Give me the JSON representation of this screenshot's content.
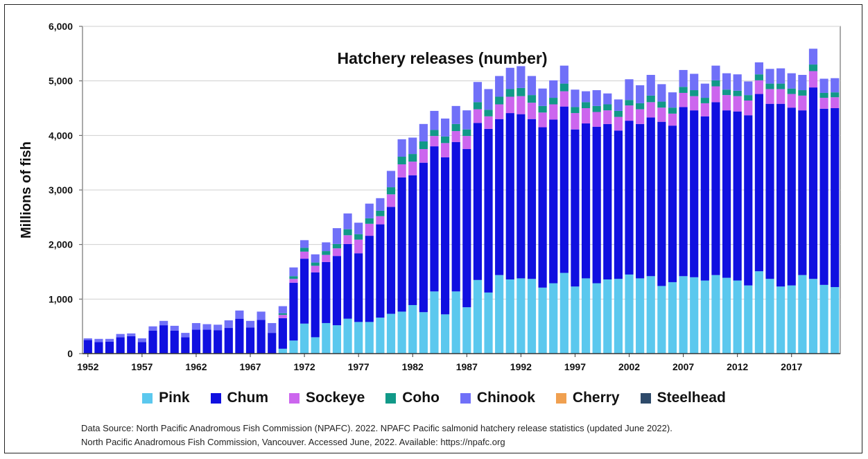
{
  "chart_data": {
    "type": "bar",
    "stacked": true,
    "title": "Hatchery releases (number)",
    "xlabel": "",
    "ylabel": "Millions of fish",
    "ylim": [
      0,
      6000
    ],
    "yticks": [
      0,
      1000,
      2000,
      3000,
      4000,
      5000,
      6000
    ],
    "ytick_labels": [
      "0",
      "1,000",
      "2,000",
      "3,000",
      "4,000",
      "5,000",
      "6,000"
    ],
    "xtick_labels": [
      "1952",
      "1957",
      "1962",
      "1967",
      "1972",
      "1977",
      "1982",
      "1987",
      "1992",
      "1997",
      "2002",
      "2007",
      "2012",
      "2017"
    ],
    "grid": "horizontal",
    "legend_position": "bottom",
    "categories": [
      "1952",
      "1953",
      "1954",
      "1955",
      "1956",
      "1957",
      "1958",
      "1959",
      "1960",
      "1961",
      "1962",
      "1963",
      "1964",
      "1965",
      "1966",
      "1967",
      "1968",
      "1969",
      "1970",
      "1971",
      "1972",
      "1973",
      "1974",
      "1975",
      "1976",
      "1977",
      "1978",
      "1979",
      "1980",
      "1981",
      "1982",
      "1983",
      "1984",
      "1985",
      "1986",
      "1987",
      "1988",
      "1989",
      "1990",
      "1991",
      "1992",
      "1993",
      "1994",
      "1995",
      "1996",
      "1997",
      "1998",
      "1999",
      "2000",
      "2001",
      "2002",
      "2003",
      "2004",
      "2005",
      "2006",
      "2007",
      "2008",
      "2009",
      "2010",
      "2011",
      "2012",
      "2013",
      "2014",
      "2015",
      "2016",
      "2017",
      "2018",
      "2019",
      "2020",
      "2021"
    ],
    "series": [
      {
        "name": "Pink",
        "color": "#5bc8ee",
        "values": [
          0,
          0,
          0,
          0,
          0,
          0,
          0,
          0,
          0,
          0,
          0,
          0,
          0,
          0,
          0,
          0,
          0,
          0,
          90,
          240,
          550,
          300,
          560,
          520,
          640,
          580,
          580,
          660,
          730,
          770,
          890,
          760,
          1140,
          720,
          1140,
          850,
          1350,
          1120,
          1440,
          1360,
          1380,
          1370,
          1210,
          1290,
          1480,
          1230,
          1380,
          1290,
          1360,
          1370,
          1450,
          1380,
          1420,
          1240,
          1310,
          1420,
          1400,
          1340,
          1440,
          1390,
          1340,
          1250,
          1510,
          1370,
          1230,
          1250,
          1440,
          1370,
          1260,
          1220
        ]
      },
      {
        "name": "Chum",
        "color": "#1010e0",
        "values": [
          250,
          210,
          220,
          300,
          320,
          210,
          420,
          520,
          420,
          300,
          440,
          440,
          430,
          470,
          640,
          480,
          620,
          380,
          560,
          1060,
          1190,
          1190,
          1120,
          1270,
          1370,
          1260,
          1580,
          1710,
          1960,
          2460,
          2380,
          2740,
          2660,
          2880,
          2740,
          2900,
          2880,
          3000,
          2860,
          3050,
          3010,
          2930,
          2940,
          3000,
          3050,
          2880,
          2840,
          2870,
          2850,
          2720,
          2820,
          2830,
          2910,
          3010,
          2870,
          3100,
          3060,
          3010,
          3170,
          3070,
          3100,
          3120,
          3250,
          3210,
          3350,
          3260,
          3020,
          3510,
          3230,
          3280
        ]
      },
      {
        "name": "Sockeye",
        "color": "#cc66ee",
        "values": [
          0,
          0,
          0,
          0,
          0,
          0,
          0,
          0,
          0,
          0,
          0,
          0,
          0,
          0,
          0,
          0,
          0,
          0,
          60,
          70,
          130,
          120,
          130,
          140,
          160,
          250,
          220,
          150,
          230,
          240,
          250,
          250,
          190,
          260,
          200,
          240,
          250,
          230,
          270,
          300,
          330,
          300,
          270,
          280,
          280,
          300,
          280,
          270,
          250,
          250,
          280,
          270,
          280,
          260,
          220,
          260,
          260,
          240,
          290,
          280,
          280,
          270,
          250,
          270,
          270,
          250,
          270,
          300,
          200,
          200
        ]
      },
      {
        "name": "Coho",
        "color": "#119988",
        "values": [
          0,
          0,
          0,
          0,
          0,
          0,
          0,
          0,
          0,
          0,
          0,
          0,
          0,
          0,
          0,
          0,
          0,
          0,
          30,
          50,
          70,
          60,
          70,
          80,
          110,
          100,
          100,
          100,
          130,
          140,
          140,
          140,
          110,
          120,
          130,
          120,
          130,
          120,
          140,
          140,
          150,
          140,
          120,
          120,
          140,
          110,
          110,
          110,
          110,
          110,
          100,
          110,
          120,
          110,
          110,
          110,
          110,
          100,
          110,
          100,
          100,
          100,
          110,
          100,
          100,
          100,
          100,
          120,
          90,
          90
        ]
      },
      {
        "name": "Chinook",
        "color": "#7070f8",
        "values": [
          30,
          60,
          50,
          60,
          50,
          70,
          80,
          80,
          90,
          80,
          120,
          100,
          100,
          140,
          150,
          120,
          150,
          180,
          130,
          160,
          140,
          150,
          160,
          290,
          290,
          210,
          270,
          230,
          300,
          320,
          300,
          320,
          350,
          330,
          330,
          350,
          370,
          380,
          380,
          390,
          400,
          350,
          320,
          320,
          330,
          320,
          200,
          290,
          200,
          210,
          380,
          330,
          380,
          320,
          280,
          310,
          300,
          260,
          270,
          300,
          300,
          250,
          220,
          270,
          280,
          280,
          280,
          290,
          260,
          260
        ]
      },
      {
        "name": "Cherry",
        "color": "#f0a050",
        "values": [
          0,
          0,
          0,
          0,
          0,
          0,
          0,
          0,
          0,
          0,
          0,
          0,
          0,
          0,
          0,
          0,
          0,
          0,
          0,
          0,
          0,
          0,
          0,
          0,
          0,
          0,
          0,
          0,
          0,
          0,
          0,
          0,
          0,
          0,
          0,
          0,
          0,
          0,
          0,
          0,
          0,
          0,
          0,
          0,
          0,
          0,
          0,
          0,
          0,
          0,
          0,
          0,
          0,
          0,
          0,
          0,
          0,
          0,
          0,
          0,
          0,
          0,
          0,
          0,
          0,
          0,
          0,
          0,
          0,
          0
        ]
      },
      {
        "name": "Steelhead",
        "color": "#2e4a6a",
        "values": [
          0,
          0,
          0,
          0,
          0,
          0,
          0,
          0,
          0,
          0,
          0,
          0,
          0,
          0,
          0,
          0,
          0,
          0,
          0,
          0,
          0,
          0,
          0,
          0,
          0,
          0,
          0,
          0,
          0,
          0,
          0,
          0,
          0,
          0,
          0,
          0,
          0,
          0,
          0,
          0,
          0,
          0,
          0,
          0,
          0,
          0,
          0,
          0,
          0,
          0,
          0,
          0,
          0,
          0,
          0,
          0,
          0,
          0,
          0,
          0,
          0,
          0,
          0,
          0,
          0,
          0,
          0,
          0,
          0,
          0
        ]
      }
    ]
  },
  "legend": [
    {
      "label": "Pink",
      "color": "#5bc8ee"
    },
    {
      "label": "Chum",
      "color": "#1010e0"
    },
    {
      "label": "Sockeye",
      "color": "#cc66ee"
    },
    {
      "label": "Coho",
      "color": "#119988"
    },
    {
      "label": "Chinook",
      "color": "#7070f8"
    },
    {
      "label": "Cherry",
      "color": "#f0a050"
    },
    {
      "label": "Steelhead",
      "color": "#2e4a6a"
    }
  ],
  "source": {
    "line1": "Data Source:  North Pacific Anadromous Fish Commission (NPAFC). 2022. NPAFC Pacific salmonid hatchery release statistics (updated June 2022).",
    "line2": "North Pacific Anadromous Fish Commission, Vancouver. Accessed June, 2022. Available: https://npafc.org"
  }
}
